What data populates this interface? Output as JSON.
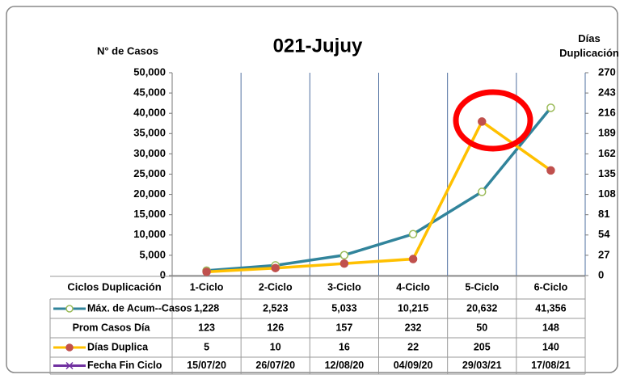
{
  "chart_data": {
    "type": "line",
    "title": "021-Jujuy",
    "y_label": "N° de Casos",
    "y2_label": "Días Duplicación",
    "table_header": "Ciclos Duplicación",
    "categories": [
      "1-Ciclo",
      "2-Ciclo",
      "3-Ciclo",
      "4-Ciclo",
      "5-Ciclo",
      "6-Ciclo"
    ],
    "series": [
      {
        "name": "Máx. de Acum--Casos",
        "color": "#31849b",
        "marker_color": "#9bbb59",
        "values": [
          1228,
          2523,
          5033,
          10215,
          20632,
          41356
        ],
        "value_labels": [
          "1,228",
          "2,523",
          "5,033",
          "10,215",
          "20,632",
          "41,356"
        ]
      },
      {
        "name": "Días Duplica",
        "color": "#ffc000",
        "marker_color": "#c0504d",
        "axis": "y2",
        "values": [
          5,
          10,
          16,
          22,
          205,
          140
        ]
      }
    ],
    "table_rows": [
      {
        "name": "Prom Casos Día",
        "values": [
          123,
          126,
          157,
          232,
          50,
          148
        ]
      },
      {
        "name": "Fecha Fin Ciclo",
        "color": "#7030a0",
        "values": [
          "15/07/20",
          "26/07/20",
          "12/08/20",
          "04/09/20",
          "29/03/21",
          "17/08/21"
        ]
      }
    ],
    "ylim": [
      0,
      50000
    ],
    "yticks": [
      0,
      {
        "value": 5000,
        "label": "5,000"
      },
      {
        "value": 10000,
        "label": "10,000"
      },
      {
        "value": 15000,
        "label": "15,000"
      },
      {
        "value": 20000,
        "label": "20,000"
      },
      {
        "value": 25000,
        "label": "25,000"
      },
      {
        "value": 30000,
        "label": "30,000"
      },
      {
        "value": 35000,
        "label": "35,000"
      },
      {
        "value": 40000,
        "label": "40,000"
      },
      {
        "value": 45000,
        "label": "45,000"
      },
      {
        "value": 50000,
        "label": "50,000"
      }
    ],
    "y2lim": [
      0,
      270
    ],
    "y2ticks": [
      0,
      27,
      54,
      81,
      108,
      135,
      162,
      189,
      216,
      243,
      270
    ]
  }
}
